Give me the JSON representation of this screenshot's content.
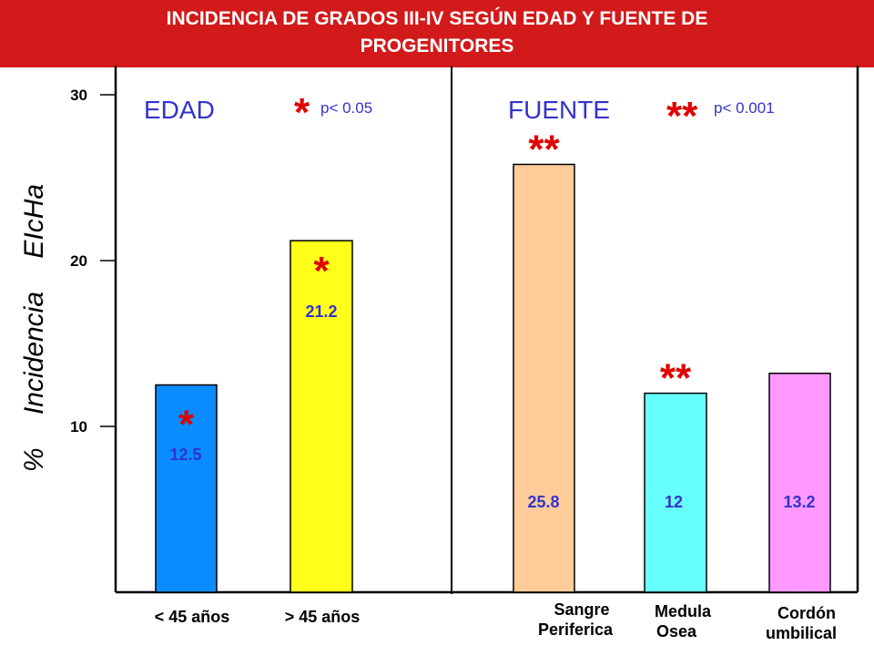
{
  "title": {
    "line1": "INCIDENCIA DE GRADOS III-IV SEGÚN EDAD Y FUENTE DE",
    "line2": "PROGENITORES"
  },
  "y_axis": {
    "label_part1": "%",
    "label_part2": "Incidencia",
    "label_part3": "EIcHa"
  },
  "panels": {
    "edad": {
      "heading": "EDAD",
      "sig_mark": "*",
      "p_text": "p< 0.05"
    },
    "fuente": {
      "heading": "FUENTE",
      "sig_mark": "**",
      "p_text": "p< 0.001"
    }
  },
  "colors": {
    "title_bg": "#d21a1a",
    "heading_text": "#3333cc",
    "star": "#e00000",
    "value_text": "#3333cc"
  },
  "x_labels": {
    "edad_lt45": "< 45 años",
    "edad_gt45": "> 45 años",
    "sp_line1": "Sangre",
    "sp_line2": "Periferica",
    "mo_line1": "Medula",
    "mo_line2": "Osea",
    "cu_line1": "Cordón",
    "cu_line2": "umbilical"
  },
  "chart_data": {
    "type": "bar",
    "ylabel": "% Incidencia EIcHa",
    "ylim": [
      0,
      30
    ],
    "yticks": [
      10,
      20,
      30
    ],
    "grid": false,
    "legend": "none",
    "categories": [
      "< 45 años",
      "> 45 años",
      "Sangre Periferica",
      "Medula Osea",
      "Cordón umbilical"
    ],
    "series": [
      {
        "values": [
          12.5,
          21.2,
          25.8,
          12,
          13.2
        ],
        "value_labels": [
          "12.5",
          "21.2",
          "25.8",
          "12",
          "13.2"
        ],
        "colors": [
          "#0a8cff",
          "#ffff1a",
          "#ffcc99",
          "#66ffff",
          "#ff99ff"
        ],
        "marks": [
          "*",
          "*",
          "**",
          "**",
          ""
        ]
      }
    ]
  }
}
